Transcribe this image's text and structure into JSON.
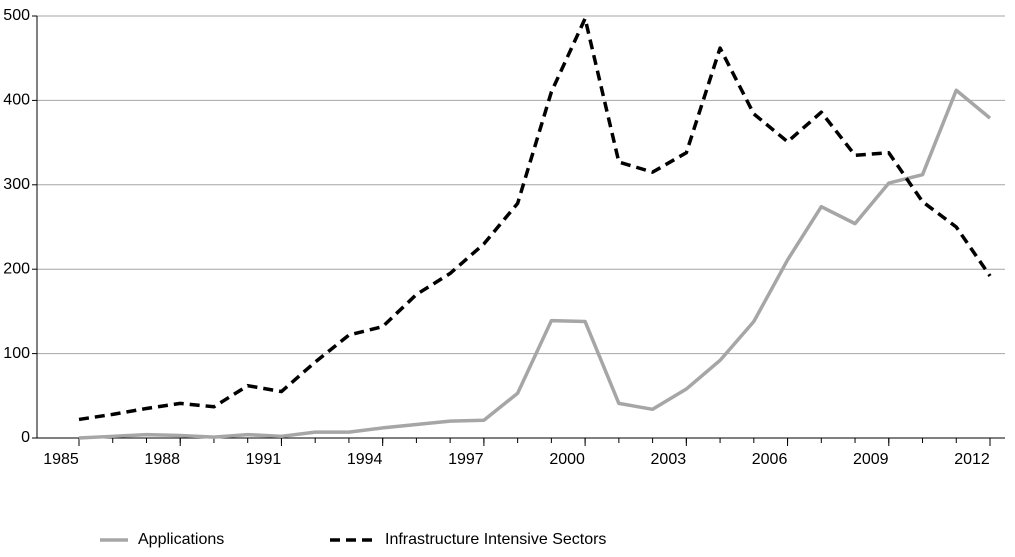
{
  "chart_data": {
    "type": "line",
    "x": [
      1985,
      1986,
      1987,
      1988,
      1989,
      1990,
      1991,
      1992,
      1993,
      1994,
      1995,
      1996,
      1997,
      1998,
      1999,
      2000,
      2001,
      2002,
      2003,
      2004,
      2005,
      2006,
      2007,
      2008,
      2009,
      2010,
      2011,
      2012
    ],
    "series": [
      {
        "name": "Applications",
        "color": "#a6a6a6",
        "dash": false,
        "values": [
          0,
          2,
          4,
          3,
          1,
          4,
          2,
          7,
          7,
          12,
          16,
          20,
          21,
          53,
          139,
          138,
          41,
          34,
          58,
          92,
          138,
          211,
          274,
          254,
          302,
          312,
          412,
          379
        ]
      },
      {
        "name": "Infrastructure  Intensive Sectors",
        "color": "#000000",
        "dash": true,
        "values": [
          22,
          28,
          35,
          41,
          37,
          62,
          55,
          90,
          122,
          132,
          170,
          195,
          230,
          278,
          410,
          497,
          327,
          315,
          338,
          462,
          384,
          351,
          386,
          335,
          338,
          280,
          250,
          192
        ]
      }
    ],
    "xlim": [
      1985,
      2012
    ],
    "xticks": [
      1985,
      1988,
      1991,
      1994,
      1997,
      2000,
      2003,
      2006,
      2009,
      2012
    ],
    "ylim": [
      0,
      500
    ],
    "yticks": [
      0,
      100,
      200,
      300,
      400,
      500
    ],
    "grid": true,
    "legend": "bottom"
  }
}
